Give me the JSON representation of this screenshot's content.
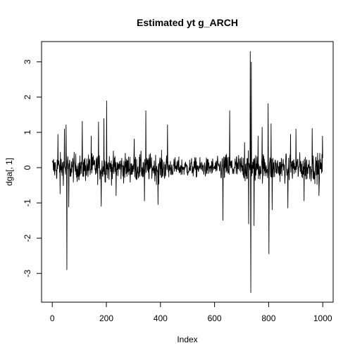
{
  "chart_data": {
    "type": "line",
    "title": "Estimated yt g_ARCH",
    "xlabel": "Index",
    "ylabel": "dga[, 1]",
    "xlim": [
      0,
      1000
    ],
    "ylim": [
      -3.6,
      3.35
    ],
    "xticks": [
      0,
      200,
      400,
      600,
      800,
      1000
    ],
    "yticks": [
      -3,
      -2,
      -1,
      0,
      1,
      2,
      3
    ],
    "grid": false,
    "legend": "none",
    "line_color": "#000000",
    "n_points": 1000,
    "baseline_amplitude": 0.28,
    "key_points": [
      {
        "x": 20,
        "y": 0.95
      },
      {
        "x": 28,
        "y": -0.75
      },
      {
        "x": 44,
        "y": 1.1
      },
      {
        "x": 50,
        "y": 1.22
      },
      {
        "x": 53,
        "y": -2.9
      },
      {
        "x": 60,
        "y": -1.12
      },
      {
        "x": 110,
        "y": 1.32
      },
      {
        "x": 143,
        "y": 0.9
      },
      {
        "x": 170,
        "y": 1.3
      },
      {
        "x": 180,
        "y": -1.1
      },
      {
        "x": 190,
        "y": 1.4
      },
      {
        "x": 200,
        "y": 1.9
      },
      {
        "x": 235,
        "y": -0.8
      },
      {
        "x": 302,
        "y": 0.82
      },
      {
        "x": 340,
        "y": -0.95
      },
      {
        "x": 345,
        "y": 1.62
      },
      {
        "x": 390,
        "y": -1.05
      },
      {
        "x": 425,
        "y": 1.22
      },
      {
        "x": 630,
        "y": -1.5
      },
      {
        "x": 655,
        "y": 1.62
      },
      {
        "x": 710,
        "y": 0.72
      },
      {
        "x": 725,
        "y": -1.6
      },
      {
        "x": 731,
        "y": 3.3
      },
      {
        "x": 733,
        "y": -3.55
      },
      {
        "x": 735,
        "y": 3.0
      },
      {
        "x": 745,
        "y": -1.65
      },
      {
        "x": 760,
        "y": 0.9
      },
      {
        "x": 775,
        "y": 1.15
      },
      {
        "x": 797,
        "y": 1.82
      },
      {
        "x": 800,
        "y": -2.45
      },
      {
        "x": 808,
        "y": 1.25
      },
      {
        "x": 812,
        "y": -1.2
      },
      {
        "x": 870,
        "y": -1.15
      },
      {
        "x": 880,
        "y": 0.95
      },
      {
        "x": 900,
        "y": 1.1
      },
      {
        "x": 930,
        "y": -0.95
      },
      {
        "x": 960,
        "y": 1.12
      },
      {
        "x": 985,
        "y": -0.8
      },
      {
        "x": 998,
        "y": 0.9
      }
    ]
  }
}
